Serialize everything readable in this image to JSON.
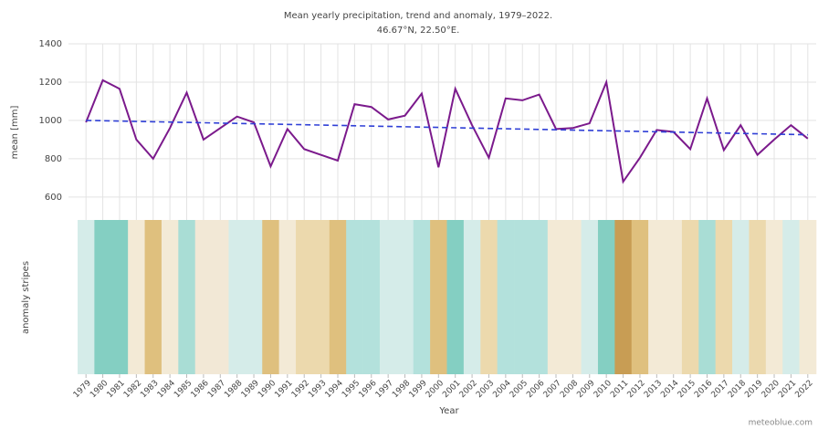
{
  "chart_data": {
    "type": "line",
    "title": "Mean yearly precipitation, trend and anomaly, 1979–2022.",
    "subtitle": "46.67°N, 22.50°E.",
    "y_label": "mean [mm]",
    "stripes_label": "anomaly stripes",
    "x_label": "Year",
    "credit": "meteoblue.com",
    "x": [
      1979,
      1980,
      1981,
      1982,
      1983,
      1984,
      1985,
      1986,
      1987,
      1988,
      1989,
      1990,
      1991,
      1992,
      1993,
      1994,
      1995,
      1996,
      1997,
      1998,
      1999,
      2000,
      2001,
      2002,
      2003,
      2004,
      2005,
      2006,
      2007,
      2008,
      2009,
      2010,
      2011,
      2012,
      2013,
      2014,
      2015,
      2016,
      2017,
      2018,
      2019,
      2020,
      2021,
      2022
    ],
    "series": [
      {
        "name": "mean",
        "color": "#7b1a8c",
        "values": [
          990,
          1210,
          1165,
          900,
          800,
          960,
          1145,
          900,
          960,
          1020,
          990,
          760,
          955,
          850,
          820,
          790,
          1085,
          1070,
          1005,
          1025,
          1140,
          755,
          1165,
          975,
          805,
          1115,
          1105,
          1135,
          955,
          960,
          985,
          1200,
          680,
          805,
          950,
          940,
          850,
          1115,
          845,
          975,
          820,
          900,
          975,
          905
        ]
      }
    ],
    "trend": {
      "color": "#2f3fd6",
      "x": [
        1979,
        2022
      ],
      "values": [
        1000,
        925
      ]
    },
    "stripe_colors": [
      "#d5ece9",
      "#84cfc2",
      "#84cfc2",
      "#f3ead6",
      "#dfc07e",
      "#f3ead6",
      "#a9ddd5",
      "#f2e8d6",
      "#f2e8d6",
      "#d5ece9",
      "#d5ece9",
      "#dfc07e",
      "#f3ead6",
      "#ecd9ad",
      "#ecd9ad",
      "#dfc07e",
      "#b3e1dc",
      "#b3e1dc",
      "#d5ece9",
      "#d5ece9",
      "#b3e1dc",
      "#dfc07e",
      "#84cfc2",
      "#d5ece9",
      "#ecd9ad",
      "#b3e1dc",
      "#b3e1dc",
      "#b3e1dc",
      "#f3ead6",
      "#f3ead6",
      "#d5ece9",
      "#84cfc2",
      "#c89d54",
      "#dfc07e",
      "#f3ead6",
      "#f3ead6",
      "#ecd9ad",
      "#a9ddd5",
      "#ecd9ad",
      "#d5ece9",
      "#ecd9ad",
      "#f3ead6",
      "#d5ece9",
      "#f3ead6"
    ],
    "xlim": [
      1978.5,
      2022.5
    ],
    "ylim": [
      480,
      1400
    ],
    "yticks": [
      600,
      800,
      1000,
      1200,
      1400
    ],
    "grid": true
  }
}
